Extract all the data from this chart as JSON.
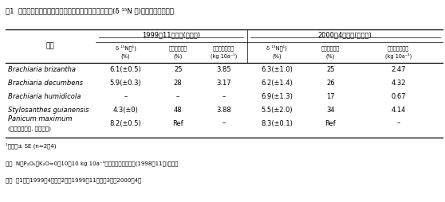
{
  "title": "表1  ブラジルで栽培された各種牧草の重窒素自然存在比(δ ¹⁵N 値)と推定窒素固定量",
  "group1_label": "1999年11月収穫(乾期作)",
  "group2_label": "2000年4月収穫(雨期作)",
  "species_header": "草種",
  "subheader_d15n": "δ ¹⁵N値¹)",
  "subheader_d15n_unit": "(%)",
  "subheader_rate": "窒素固定窒率",
  "subheader_rate_unit": "(%)",
  "subheader_amount": "推定窒素固定量",
  "subheader_amount_unit": "(kg 10a⁻¹)",
  "rows": [
    {
      "species": "Brachiaria brizantha",
      "sub": null,
      "values": [
        "6.1(±0.5)",
        "25",
        "3.85",
        "6.3(±1.0)",
        "25",
        "2.47"
      ]
    },
    {
      "species": "Brachiaria decumbens",
      "sub": null,
      "values": [
        "5.9(±0.3)",
        "28",
        "3.17",
        "6.2(±1.4)",
        "26",
        "4.32"
      ]
    },
    {
      "species": "Brachiaria humidicola",
      "sub": null,
      "values": [
        "–",
        "–",
        "–",
        "6.9(±1.3)",
        "17",
        "0.67"
      ]
    },
    {
      "species": "Stylosanthes guianensis",
      "sub": null,
      "values": [
        "4.3(±0)",
        "48",
        "3.88",
        "5.5(±2.0)",
        "34",
        "4.14"
      ]
    },
    {
      "species": "Panicum maximum",
      "sub": "(ギニアグラス, 対照作物)",
      "values": [
        "8.2(±0.5)",
        "Ref",
        "–",
        "8.3(±0.1)",
        "Ref",
        "–"
      ]
    }
  ],
  "footnote1": "¹）平均± SE (n=2〜4)",
  "footnote2": "施肥  N：P₂O₅：K₂O=0：10：10 kg 10a⁻¹を基肥として播種時(1998年11月)に施用",
  "footnote3": "収穫  第1回：1999年4月、第2回：1999年11月、第3回：2000年4月",
  "background": "#ffffff",
  "text_color": "#000000"
}
